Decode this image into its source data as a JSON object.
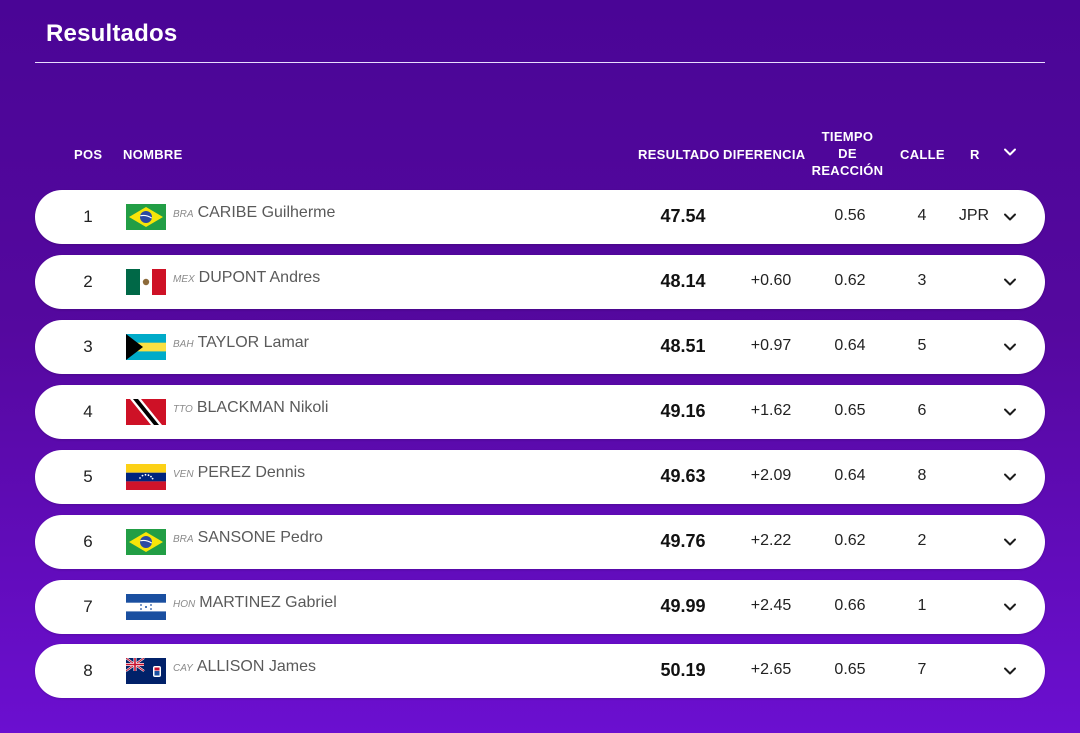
{
  "page": {
    "title": "Resultados"
  },
  "table": {
    "headers": {
      "pos": "POS",
      "name": "NOMBRE",
      "result": "RESULTADO",
      "difference": "DIFERENCIA",
      "reaction_line1": "TIEMPO",
      "reaction_line2": "DE",
      "reaction_line3": "REACCIÓN",
      "lane": "CALLE",
      "record": "R"
    },
    "rows": [
      {
        "pos": "1",
        "flag": "brazil-flag",
        "code": "BRA",
        "name": "CARIBE Guilherme",
        "result": "47.54",
        "diff": "",
        "reaction": "0.56",
        "lane": "4",
        "record": "JPR"
      },
      {
        "pos": "2",
        "flag": "mexico-flag",
        "code": "MEX",
        "name": "DUPONT Andres",
        "result": "48.14",
        "diff": "+0.60",
        "reaction": "0.62",
        "lane": "3",
        "record": ""
      },
      {
        "pos": "3",
        "flag": "bahamas-flag",
        "code": "BAH",
        "name": "TAYLOR Lamar",
        "result": "48.51",
        "diff": "+0.97",
        "reaction": "0.64",
        "lane": "5",
        "record": ""
      },
      {
        "pos": "4",
        "flag": "trinidad-flag",
        "code": "TTO",
        "name": "BLACKMAN Nikoli",
        "result": "49.16",
        "diff": "+1.62",
        "reaction": "0.65",
        "lane": "6",
        "record": ""
      },
      {
        "pos": "5",
        "flag": "venezuela-flag",
        "code": "VEN",
        "name": "PEREZ Dennis",
        "result": "49.63",
        "diff": "+2.09",
        "reaction": "0.64",
        "lane": "8",
        "record": ""
      },
      {
        "pos": "6",
        "flag": "brazil-flag",
        "code": "BRA",
        "name": "SANSONE Pedro",
        "result": "49.76",
        "diff": "+2.22",
        "reaction": "0.62",
        "lane": "2",
        "record": ""
      },
      {
        "pos": "7",
        "flag": "honduras-flag",
        "code": "HON",
        "name": "MARTINEZ Gabriel",
        "result": "49.99",
        "diff": "+2.45",
        "reaction": "0.66",
        "lane": "1",
        "record": ""
      },
      {
        "pos": "8",
        "flag": "cayman-flag",
        "code": "CAY",
        "name": "ALLISON James",
        "result": "50.19",
        "diff": "+2.65",
        "reaction": "0.65",
        "lane": "7",
        "record": ""
      }
    ]
  },
  "colors": {
    "background_top": "#4a0596",
    "background_bottom": "#6b0fd0",
    "row_bg": "#ffffff"
  }
}
